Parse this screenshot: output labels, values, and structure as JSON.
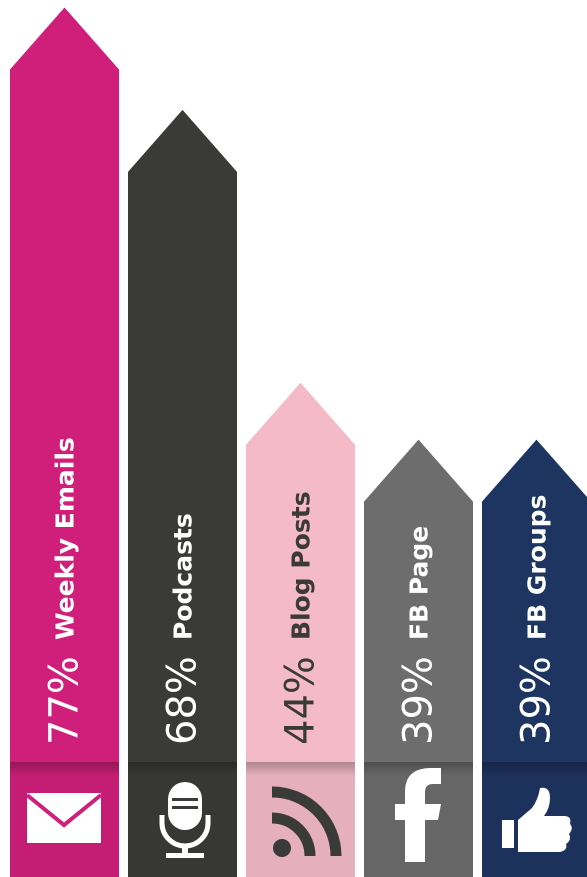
{
  "chart_data": {
    "type": "arrow-bar",
    "categories": [
      "Weekly Emails",
      "Podcasts",
      "Blog Posts",
      "FB Page",
      "FB Groups"
    ],
    "values": [
      77,
      68,
      44,
      39,
      39
    ],
    "value_labels": [
      "77%",
      "68%",
      "44%",
      "39%",
      "39%"
    ],
    "colors": [
      "#d01f7a",
      "#3a3b39",
      "#f4bac8",
      "#6d6d6d",
      "#1e3461"
    ]
  }
}
